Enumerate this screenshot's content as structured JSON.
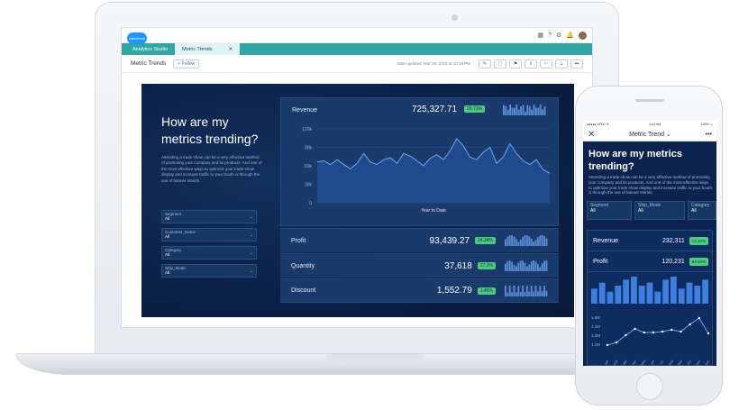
{
  "laptop": {
    "tabs": [
      "Analytics Studio",
      "Metric Trends"
    ],
    "tab_close": "✕",
    "page_title": "Metric Trends",
    "follow_label": "+ Follow",
    "updated_text": "Date updated: Mar 28, 2018 at 10:18 PM",
    "top_icons": [
      "▦",
      "?",
      "⚙",
      "🔔"
    ],
    "toolbar_icons": [
      "✎",
      "⬚",
      "⚑",
      "⇪",
      "⚐",
      "☺",
      "•••"
    ],
    "logo_text": "salesforce",
    "heading": "How are my metrics trending?",
    "description": "Attending a trade show can be a very effective method of promoting your company and its products. And one of the most effective ways to optimize your trade show display and increase traffic to your booth is through the use of banner stands.",
    "filters": [
      {
        "label": "Segment",
        "value": "All"
      },
      {
        "label": "Customer_Name",
        "value": "All"
      },
      {
        "label": "Category",
        "value": "All"
      },
      {
        "label": "Ship_Mode",
        "value": "All"
      }
    ],
    "revenue": {
      "label": "Revenue",
      "value": "725,327.71",
      "change": "20.71%",
      "change_color": "#4bca81"
    },
    "metrics": [
      {
        "label": "Profit",
        "value": "93,439.27",
        "change": "24.24%"
      },
      {
        "label": "Quantity",
        "value": "37,618",
        "change": "27.3%"
      },
      {
        "label": "Discount",
        "value": "1,552.79",
        "change": "1.45%"
      }
    ]
  },
  "phone": {
    "status_left": "●●●●● SFDC ✈",
    "status_time": "9:41 AM",
    "status_right": "100% ▭",
    "nav_close": "✕",
    "nav_title": "Metric Trend ⌄",
    "nav_more": "•••",
    "heading": "How are my metrics trending?",
    "description": "Attending a trade show can be a very effective method of promoting your company and its products. And one of the most effective ways to optimize your trade show display and increase traffic to your booth is through the use of banner stands.",
    "filters": [
      {
        "label": "Segment",
        "value": "All"
      },
      {
        "label": "Ship_Mode",
        "value": "All"
      },
      {
        "label": "Category",
        "value": "All"
      }
    ],
    "revenue": {
      "label": "Revenue",
      "value": "232,311",
      "change": "12.34%"
    },
    "profit": {
      "label": "Profit",
      "value": "120,231",
      "change": "82.03%"
    }
  },
  "chart_data": [
    {
      "type": "area",
      "title": "Revenue",
      "xlabel": "Year to Date",
      "ylabel": "",
      "yticks": [
        "120k",
        "90k",
        "60k",
        "30k",
        "0"
      ],
      "ylim": [
        0,
        120000
      ],
      "x": [
        1,
        2,
        3,
        4,
        5,
        6,
        7,
        8,
        9,
        10,
        11,
        12,
        13,
        14,
        15,
        16,
        17,
        18,
        19,
        20,
        21,
        22,
        23,
        24,
        25,
        26,
        27,
        28,
        29,
        30,
        31,
        32,
        33,
        34,
        35,
        36
      ],
      "values": [
        66000,
        68000,
        62000,
        70000,
        62000,
        55000,
        64000,
        80000,
        66000,
        62000,
        70000,
        73000,
        64000,
        80000,
        76000,
        68000,
        60000,
        72000,
        78000,
        70000,
        84000,
        104000,
        92000,
        74000,
        70000,
        82000,
        90000,
        64000,
        74000,
        96000,
        80000,
        68000,
        62000,
        70000,
        54000,
        48000
      ]
    },
    {
      "type": "bar",
      "title": "",
      "values": [
        5,
        7,
        4,
        6,
        8,
        9,
        6,
        7,
        4,
        8,
        9,
        5,
        7,
        6,
        8
      ]
    },
    {
      "type": "line",
      "title": "",
      "yticks": [
        "1.5M",
        "1.4M",
        "1.3M",
        "1.2M"
      ],
      "ylim": [
        1.15,
        1.55
      ],
      "x": [
        "Jan",
        "Feb",
        "Mar",
        "Apr",
        "May",
        "Jun",
        "Jul",
        "Aug",
        "Sep",
        "Oct",
        "Nov",
        "Dec"
      ],
      "values": [
        1.19,
        1.22,
        1.3,
        1.37,
        1.33,
        1.33,
        1.34,
        1.36,
        1.34,
        1.42,
        1.49,
        1.32
      ]
    }
  ]
}
